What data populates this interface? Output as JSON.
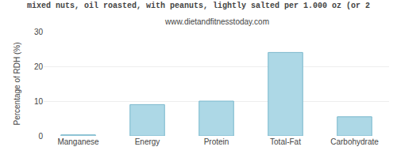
{
  "chart_data": {
    "type": "bar",
    "title": "mixed nuts, oil roasted, with peanuts, lightly salted per 1.000 oz (or 2",
    "subtitle": "www.dietandfitnesstoday.com",
    "ylabel": "Percentage of RDH (%)",
    "categories": [
      "Manganese",
      "Energy",
      "Protein",
      "Total-Fat",
      "Carbohydrate"
    ],
    "values": [
      0.3,
      9.0,
      10.0,
      24.0,
      5.5
    ],
    "color": "#add8e6",
    "ylim": [
      0,
      30
    ],
    "yticks": [
      0,
      10,
      20,
      30
    ],
    "grid": true
  }
}
